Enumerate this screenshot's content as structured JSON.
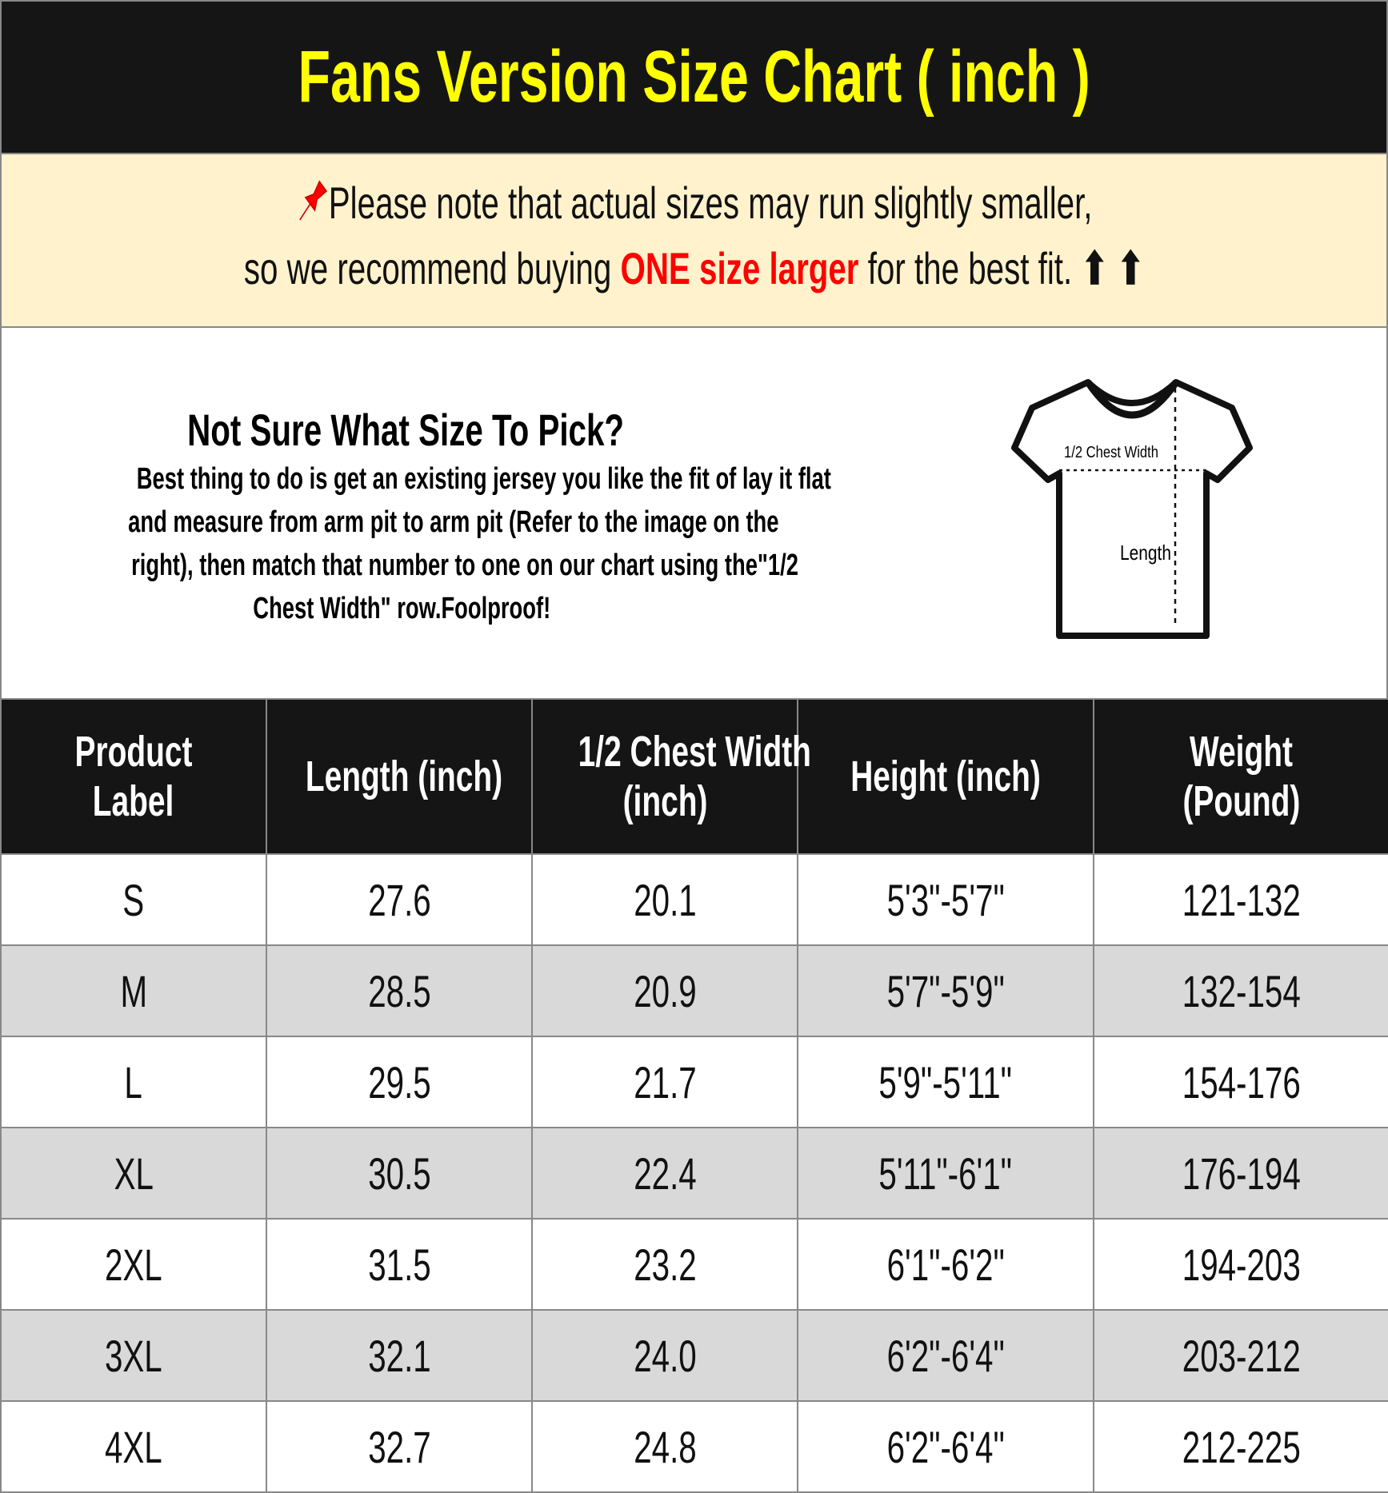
{
  "title": "Fans Version Size Chart ( inch )",
  "note": {
    "icon": "pushpin-icon",
    "line1": "Please note that actual sizes may run slightly smaller,",
    "line2_pre": "so we recommend buying ",
    "line2_highlight": "ONE size larger",
    "line2_post": " for the best fit. ",
    "arrows": "⬆ ⬆",
    "highlight_color": "#ff0000",
    "background": "#fff2cc"
  },
  "info": {
    "heading": "Not Sure What Size To Pick?",
    "lines": [
      "Best thing to do is get an existing jersey you like the fit of lay it flat",
      "and measure from arm pit to arm pit (Refer to the image on the",
      "right), then match that number to one on our chart using the\"1/2",
      "Chest Width\" row.Foolproof!"
    ],
    "diagram": {
      "chest_label": "1/2 Chest Width",
      "length_label": "Length"
    }
  },
  "table": {
    "headers": [
      [
        "Product",
        "Label"
      ],
      [
        "Length (inch)"
      ],
      [
        "1/2 Chest Width",
        "(inch)"
      ],
      [
        "Height (inch)"
      ],
      [
        "Weight",
        "(Pound)"
      ]
    ],
    "rows": [
      [
        "S",
        "27.6",
        "20.1",
        "5'3\"-5'7\"",
        "121-132"
      ],
      [
        "M",
        "28.5",
        "20.9",
        "5'7\"-5'9\"",
        "132-154"
      ],
      [
        "L",
        "29.5",
        "21.7",
        "5'9\"-5'11\"",
        "154-176"
      ],
      [
        "XL",
        "30.5",
        "22.4",
        "5'11\"-6'1\"",
        "176-194"
      ],
      [
        "2XL",
        "31.5",
        "23.2",
        "6'1\"-6'2\"",
        "194-203"
      ],
      [
        "3XL",
        "32.1",
        "24.0",
        "6'2\"-6'4\"",
        "203-212"
      ],
      [
        "4XL",
        "32.7",
        "24.8",
        "6'2\"-6'4\"",
        "212-225"
      ]
    ]
  },
  "colors": {
    "title_text": "#ffff00",
    "header_bg": "#151515",
    "alt_row": "#d9d9d9"
  }
}
